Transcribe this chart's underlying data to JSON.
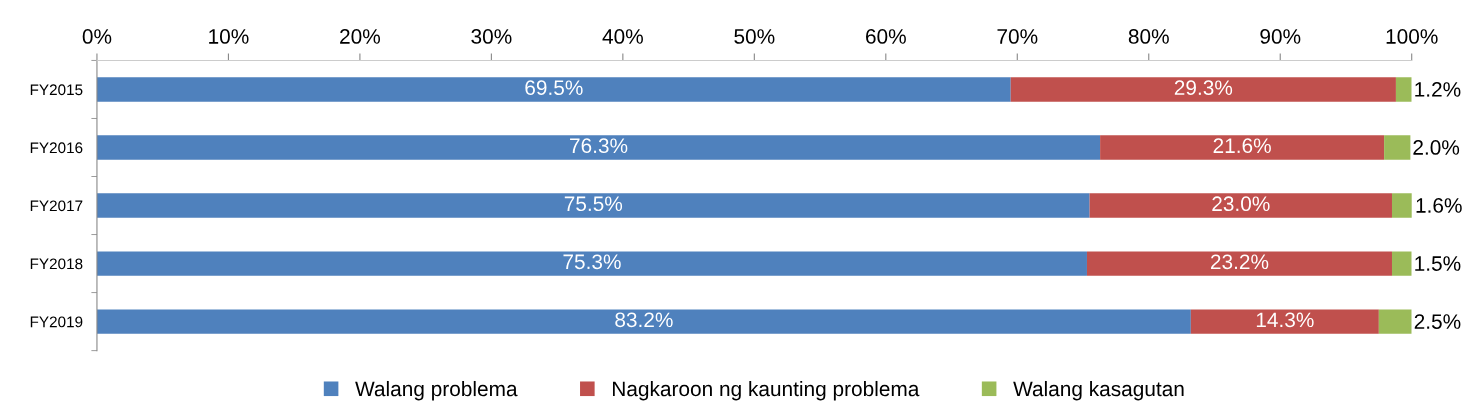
{
  "chart_data": {
    "type": "bar",
    "orientation": "horizontal",
    "stacked": true,
    "categories": [
      "FY2015",
      "FY2016",
      "FY2017",
      "FY2018",
      "FY2019"
    ],
    "series": [
      {
        "name": "Walang problema",
        "color": "#4f81bd",
        "values": [
          69.5,
          76.3,
          75.5,
          75.3,
          83.2
        ],
        "value_labels": [
          "69.5%",
          "76.3%",
          "75.5%",
          "75.3%",
          "83.2%"
        ]
      },
      {
        "name": "Nagkaroon ng kaunting problema",
        "color": "#c0504d",
        "values": [
          29.3,
          21.6,
          23.0,
          23.2,
          14.3
        ],
        "value_labels": [
          "29.3%",
          "21.6%",
          "23.0%",
          "23.2%",
          "14.3%"
        ]
      },
      {
        "name": "Walang kasagutan",
        "color": "#9bbb59",
        "values": [
          1.2,
          2.0,
          1.6,
          1.5,
          2.5
        ],
        "value_labels": [
          "1.2%",
          "2.0%",
          "1.6%",
          "1.5%",
          "2.5%"
        ]
      }
    ],
    "xlim": [
      0,
      100
    ],
    "xticks": [
      {
        "value": 0,
        "label": "0%"
      },
      {
        "value": 10,
        "label": "10%"
      },
      {
        "value": 20,
        "label": "20%"
      },
      {
        "value": 30,
        "label": "30%"
      },
      {
        "value": 40,
        "label": "40%"
      },
      {
        "value": 50,
        "label": "50%"
      },
      {
        "value": 60,
        "label": "60%"
      },
      {
        "value": 70,
        "label": "70%"
      },
      {
        "value": 80,
        "label": "80%"
      },
      {
        "value": 90,
        "label": "90%"
      },
      {
        "value": 100,
        "label": "100%"
      }
    ],
    "grid": false,
    "legend": "bottom"
  }
}
